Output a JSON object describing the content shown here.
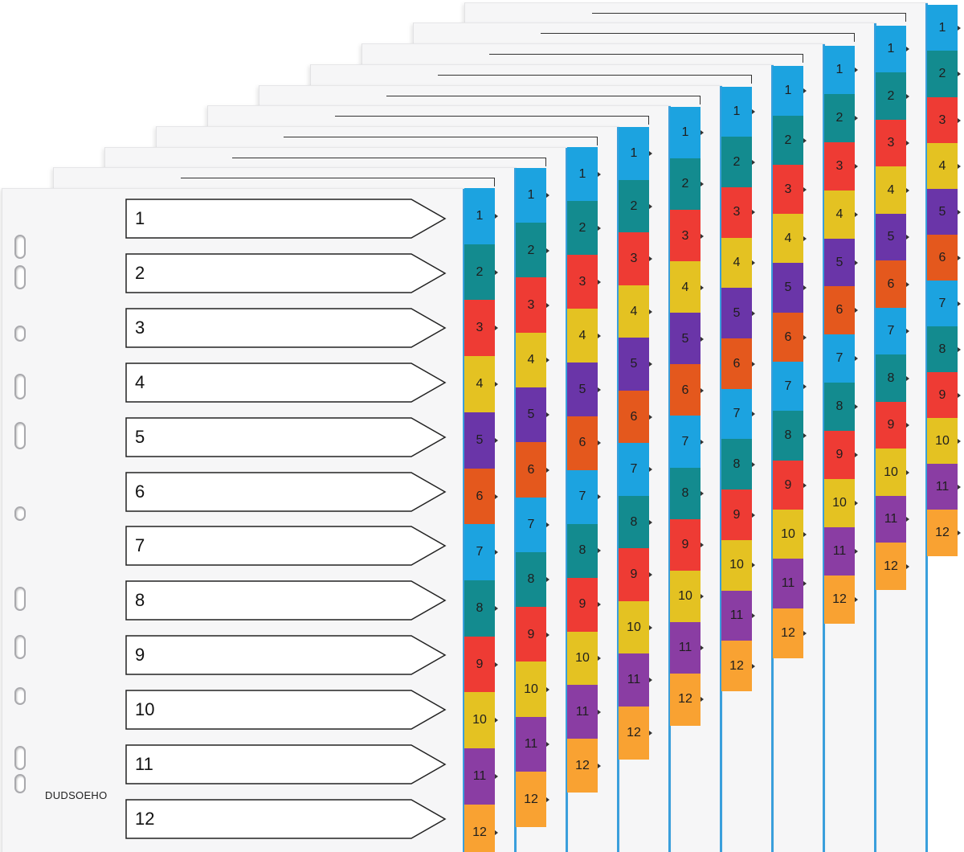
{
  "brand": "DUDSOEHO",
  "front_divider_labels": [
    "1",
    "2",
    "3",
    "4",
    "5",
    "6",
    "7",
    "8",
    "9",
    "10",
    "11",
    "12"
  ],
  "tab_labels": [
    "1",
    "2",
    "3",
    "4",
    "5",
    "6",
    "7",
    "8",
    "9",
    "10",
    "11",
    "12"
  ],
  "tab_colors": [
    "#1ca3e0",
    "#138b8f",
    "#ee3b34",
    "#e4c222",
    "#6a35a8",
    "#e4581d",
    "#1ca3e0",
    "#138b8f",
    "#ee3b34",
    "#e4c222",
    "#8a3da3",
    "#f9a232"
  ],
  "stack_count": 10
}
